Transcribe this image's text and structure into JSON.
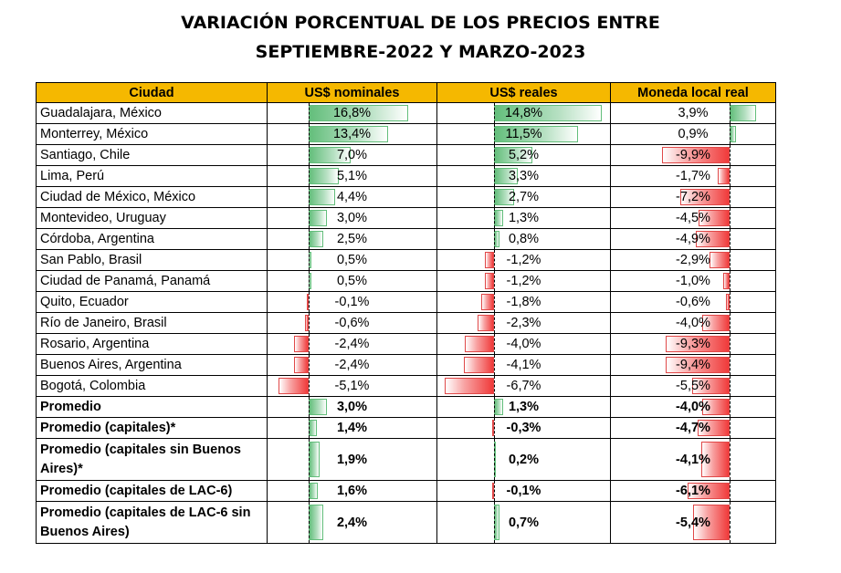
{
  "title_line1": "VARIACIÓN PORCENTUAL DE LOS PRECIOS ENTRE",
  "title_line2": "SEPTIEMBRE-2022 Y MARZO-2023",
  "chart_data": {
    "type": "table",
    "columns": [
      "Ciudad",
      "US$ nominales",
      "US$ reales",
      "Moneda local real"
    ],
    "colors": {
      "header": "#f5b800",
      "positive_bar": "#63be7b",
      "negative_bar": "#f03a3a"
    },
    "rows": [
      {
        "city": "Guadalajara, México",
        "values": [
          16.8,
          14.8,
          3.9
        ],
        "labels": [
          "16,8%",
          "14,8%",
          "3,9%"
        ]
      },
      {
        "city": "Monterrey, México",
        "values": [
          13.4,
          11.5,
          0.9
        ],
        "labels": [
          "13,4%",
          "11,5%",
          "0,9%"
        ]
      },
      {
        "city": "Santiago, Chile",
        "values": [
          7.0,
          5.2,
          -9.9
        ],
        "labels": [
          "7,0%",
          "5,2%",
          "-9,9%"
        ]
      },
      {
        "city": "Lima, Perú",
        "values": [
          5.1,
          3.3,
          -1.7
        ],
        "labels": [
          "5,1%",
          "3,3%",
          "-1,7%"
        ]
      },
      {
        "city": "Ciudad de México, México",
        "values": [
          4.4,
          2.7,
          -7.2
        ],
        "labels": [
          "4,4%",
          "2,7%",
          "-7,2%"
        ]
      },
      {
        "city": "Montevideo, Uruguay",
        "values": [
          3.0,
          1.3,
          -4.5
        ],
        "labels": [
          "3,0%",
          "1,3%",
          "-4,5%"
        ]
      },
      {
        "city": "Córdoba, Argentina",
        "values": [
          2.5,
          0.8,
          -4.9
        ],
        "labels": [
          "2,5%",
          "0,8%",
          "-4,9%"
        ]
      },
      {
        "city": "San Pablo, Brasil",
        "values": [
          0.5,
          -1.2,
          -2.9
        ],
        "labels": [
          "0,5%",
          "-1,2%",
          "-2,9%"
        ]
      },
      {
        "city": "Ciudad de Panamá, Panamá",
        "values": [
          0.5,
          -1.2,
          -1.0
        ],
        "labels": [
          "0,5%",
          "-1,2%",
          "-1,0%"
        ]
      },
      {
        "city": "Quito, Ecuador",
        "values": [
          -0.1,
          -1.8,
          -0.6
        ],
        "labels": [
          "-0,1%",
          "-1,8%",
          "-0,6%"
        ]
      },
      {
        "city": "Río de Janeiro, Brasil",
        "values": [
          -0.6,
          -2.3,
          -4.0
        ],
        "labels": [
          "-0,6%",
          "-2,3%",
          "-4,0%"
        ]
      },
      {
        "city": "Rosario, Argentina",
        "values": [
          -2.4,
          -4.0,
          -9.3
        ],
        "labels": [
          "-2,4%",
          "-4,0%",
          "-9,3%"
        ]
      },
      {
        "city": "Buenos Aires, Argentina",
        "values": [
          -2.4,
          -4.1,
          -9.4
        ],
        "labels": [
          "-2,4%",
          "-4,1%",
          "-9,4%"
        ]
      },
      {
        "city": "Bogotá, Colombia",
        "values": [
          -5.1,
          -6.7,
          -5.5
        ],
        "labels": [
          "-5,1%",
          "-6,7%",
          "-5,5%"
        ]
      },
      {
        "city": "Promedio",
        "values": [
          3.0,
          1.3,
          -4.0
        ],
        "labels": [
          "3,0%",
          "1,3%",
          "-4,0%"
        ],
        "summary": true
      },
      {
        "city": "Promedio (capitales)*",
        "values": [
          1.4,
          -0.3,
          -4.7
        ],
        "labels": [
          "1,4%",
          "-0,3%",
          "-4,7%"
        ],
        "summary": true
      },
      {
        "city": "Promedio (capitales sin Buenos Aires)*",
        "values": [
          1.9,
          0.2,
          -4.1
        ],
        "labels": [
          "1,9%",
          "0,2%",
          "-4,1%"
        ],
        "summary": true,
        "tall": true
      },
      {
        "city": "Promedio (capitales de LAC-6)",
        "values": [
          1.6,
          -0.1,
          -6.1
        ],
        "labels": [
          "1,6%",
          "-0,1%",
          "-6,1%"
        ],
        "summary": true
      },
      {
        "city": "Promedio (capitales de LAC-6 sin Buenos Aires)",
        "values": [
          2.4,
          0.7,
          -5.4
        ],
        "labels": [
          "2,4%",
          "0,7%",
          "-5,4%"
        ],
        "summary": true,
        "tall": true
      }
    ]
  }
}
